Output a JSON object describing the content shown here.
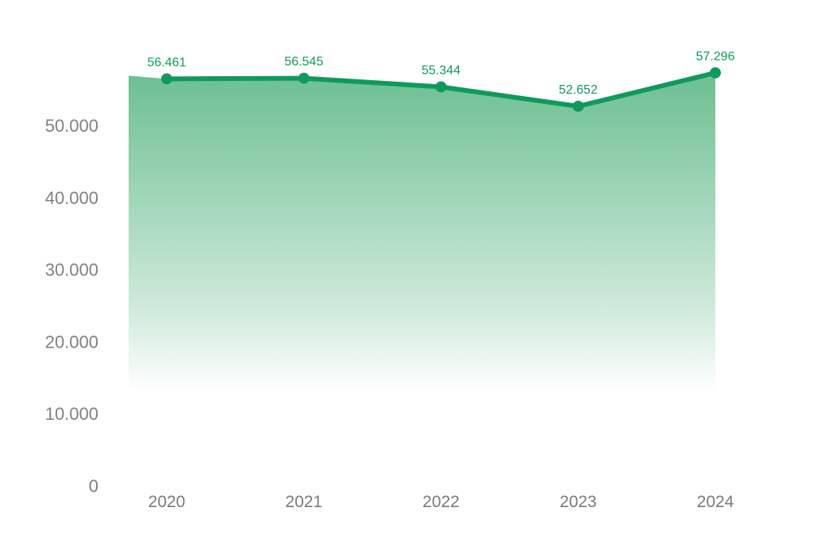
{
  "chart_data": {
    "type": "line",
    "title": "",
    "xlabel": "",
    "ylabel": "",
    "categories": [
      "2020",
      "2021",
      "2022",
      "2023",
      "2024"
    ],
    "series": [
      {
        "values": [
          56461,
          56545,
          55344,
          52652,
          57296
        ],
        "labels": [
          "56.461",
          "56.545",
          "55.344",
          "52.652",
          "57.296"
        ]
      }
    ],
    "ylim": [
      0,
      60000
    ],
    "yticks": [
      0,
      10000,
      20000,
      30000,
      40000,
      50000
    ],
    "ytick_labels": [
      "0",
      "10.000",
      "20.000",
      "30.000",
      "40.000",
      "50.000"
    ],
    "grid": false,
    "legend": "none",
    "area_fill": "gradient",
    "colors": {
      "line": "#0f9a5c",
      "area_top": "#6cbf92",
      "area_bottom": "#ffffff",
      "tick_text": "#808080",
      "data_label": "#0f9a5c"
    }
  }
}
